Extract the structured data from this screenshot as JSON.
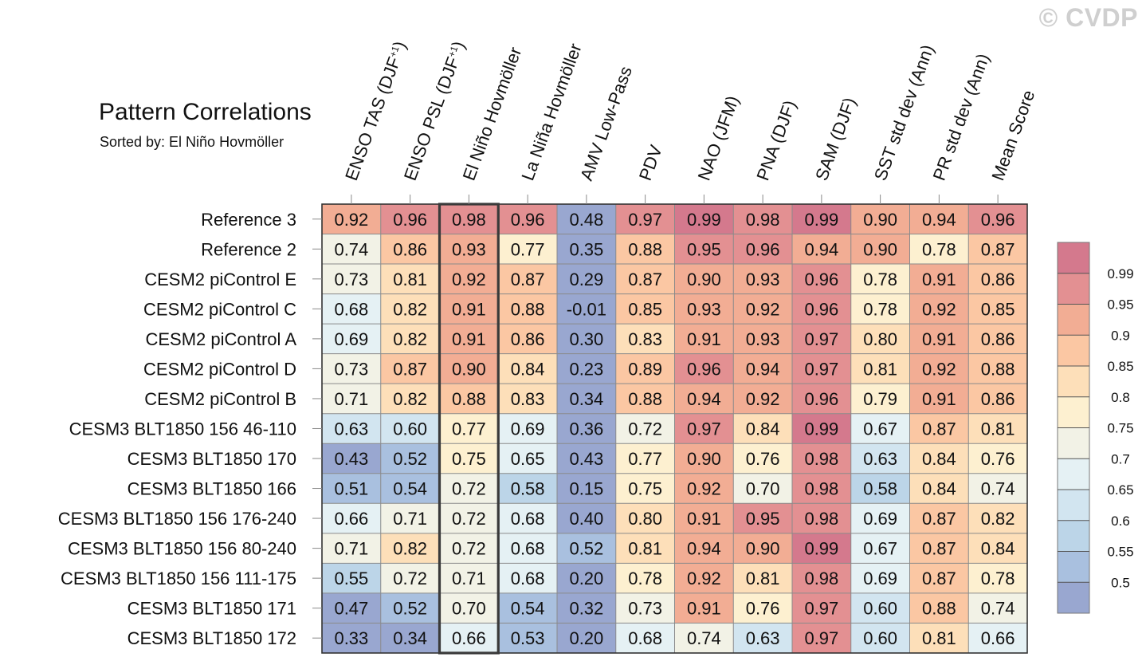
{
  "title": "Pattern Correlations",
  "subtitle": "Sorted by: El Niño Hovmöller",
  "watermark": "© CVDP",
  "chart_data": {
    "type": "heatmap",
    "title": "Pattern Correlations",
    "sorted_by": "El Niño Hovmöller",
    "highlighted_column": "El Niño Hovmöller",
    "columns": [
      {
        "label": "ENSO TAS (DJF",
        "sup": "+1",
        "close": ")"
      },
      {
        "label": "ENSO PSL (DJF",
        "sup": "+1",
        "close": ")"
      },
      {
        "label": "El Niño Hovmöller",
        "sup": "",
        "close": ""
      },
      {
        "label": "La Niña Hovmöller",
        "sup": "",
        "close": ""
      },
      {
        "label": "AMV Low-Pass",
        "sup": "",
        "close": ""
      },
      {
        "label": "PDV",
        "sup": "",
        "close": ""
      },
      {
        "label": "NAO (JFM)",
        "sup": "",
        "close": ""
      },
      {
        "label": "PNA (DJF)",
        "sup": "",
        "close": ""
      },
      {
        "label": "SAM (DJF)",
        "sup": "",
        "close": ""
      },
      {
        "label": "SST std dev (Ann)",
        "sup": "",
        "close": ""
      },
      {
        "label": "PR std dev (Ann)",
        "sup": "",
        "close": ""
      },
      {
        "label": "Mean Score",
        "sup": "",
        "close": ""
      }
    ],
    "rows": [
      "Reference 3",
      "Reference 2",
      "CESM2 piControl E",
      "CESM2 piControl C",
      "CESM2 piControl A",
      "CESM2 piControl D",
      "CESM2 piControl B",
      "CESM3 BLT1850 156 46-110",
      "CESM3 BLT1850 170",
      "CESM3 BLT1850 166",
      "CESM3 BLT1850 156 176-240",
      "CESM3 BLT1850 156 80-240",
      "CESM3 BLT1850 156 111-175",
      "CESM3 BLT1850 171",
      "CESM3 BLT1850 172"
    ],
    "values": [
      [
        "0.92",
        "0.96",
        "0.98",
        "0.96",
        "0.48",
        "0.97",
        "0.99",
        "0.98",
        "0.99",
        "0.90",
        "0.94",
        "0.96"
      ],
      [
        "0.74",
        "0.86",
        "0.93",
        "0.77",
        "0.35",
        "0.88",
        "0.95",
        "0.96",
        "0.94",
        "0.90",
        "0.78",
        "0.87"
      ],
      [
        "0.73",
        "0.81",
        "0.92",
        "0.87",
        "0.29",
        "0.87",
        "0.90",
        "0.93",
        "0.96",
        "0.78",
        "0.91",
        "0.86"
      ],
      [
        "0.68",
        "0.82",
        "0.91",
        "0.88",
        "-0.01",
        "0.85",
        "0.93",
        "0.92",
        "0.96",
        "0.78",
        "0.92",
        "0.85"
      ],
      [
        "0.69",
        "0.82",
        "0.91",
        "0.86",
        "0.30",
        "0.83",
        "0.91",
        "0.93",
        "0.97",
        "0.80",
        "0.91",
        "0.86"
      ],
      [
        "0.73",
        "0.87",
        "0.90",
        "0.84",
        "0.23",
        "0.89",
        "0.96",
        "0.94",
        "0.97",
        "0.81",
        "0.92",
        "0.88"
      ],
      [
        "0.71",
        "0.82",
        "0.88",
        "0.83",
        "0.34",
        "0.88",
        "0.94",
        "0.92",
        "0.96",
        "0.79",
        "0.91",
        "0.86"
      ],
      [
        "0.63",
        "0.60",
        "0.77",
        "0.69",
        "0.36",
        "0.72",
        "0.97",
        "0.84",
        "0.99",
        "0.67",
        "0.87",
        "0.81"
      ],
      [
        "0.43",
        "0.52",
        "0.75",
        "0.65",
        "0.43",
        "0.77",
        "0.90",
        "0.76",
        "0.98",
        "0.63",
        "0.84",
        "0.76"
      ],
      [
        "0.51",
        "0.54",
        "0.72",
        "0.58",
        "0.15",
        "0.75",
        "0.92",
        "0.70",
        "0.98",
        "0.58",
        "0.84",
        "0.74"
      ],
      [
        "0.66",
        "0.71",
        "0.72",
        "0.68",
        "0.40",
        "0.80",
        "0.91",
        "0.95",
        "0.98",
        "0.69",
        "0.87",
        "0.82"
      ],
      [
        "0.71",
        "0.82",
        "0.72",
        "0.68",
        "0.52",
        "0.81",
        "0.94",
        "0.90",
        "0.99",
        "0.67",
        "0.87",
        "0.84"
      ],
      [
        "0.55",
        "0.72",
        "0.71",
        "0.68",
        "0.20",
        "0.78",
        "0.92",
        "0.81",
        "0.98",
        "0.69",
        "0.87",
        "0.78"
      ],
      [
        "0.47",
        "0.52",
        "0.70",
        "0.54",
        "0.32",
        "0.73",
        "0.91",
        "0.76",
        "0.97",
        "0.60",
        "0.88",
        "0.74"
      ],
      [
        "0.33",
        "0.34",
        "0.66",
        "0.53",
        "0.20",
        "0.68",
        "0.74",
        "0.63",
        "0.97",
        "0.60",
        "0.81",
        "0.66"
      ]
    ],
    "colorbar": {
      "boundaries": [
        0.5,
        0.55,
        0.6,
        0.65,
        0.7,
        0.75,
        0.8,
        0.85,
        0.9,
        0.95,
        0.99
      ],
      "labels": [
        "0.5",
        "0.55",
        "0.6",
        "0.65",
        "0.7",
        "0.75",
        "0.8",
        "0.85",
        "0.9",
        "0.95",
        "0.99"
      ],
      "colors": [
        "#99a7d0",
        "#a9c0df",
        "#bcd5e8",
        "#d2e5f0",
        "#e5f1f4",
        "#f2f2e6",
        "#fdf0d0",
        "#fddfb9",
        "#fbc7a3",
        "#f2ad94",
        "#e39092",
        "#d4798d"
      ]
    }
  }
}
